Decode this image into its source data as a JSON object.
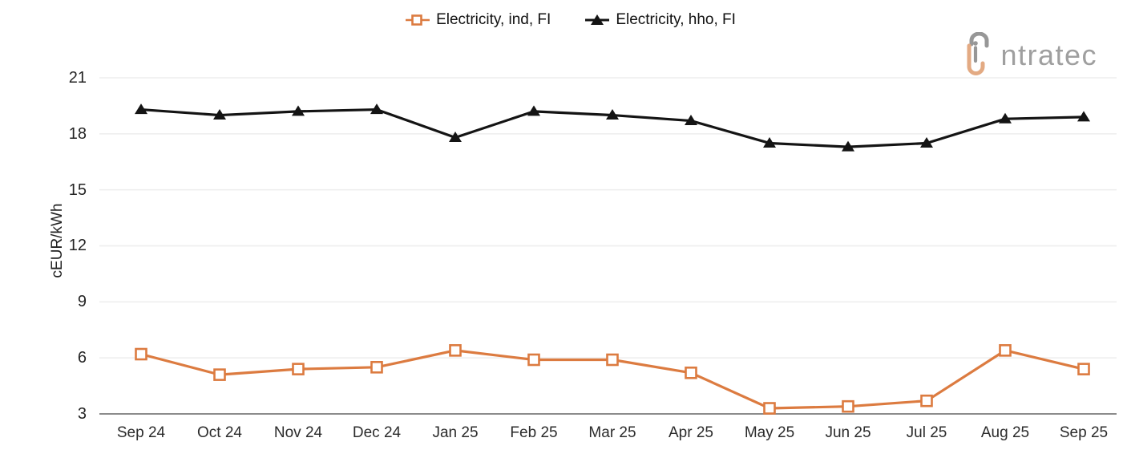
{
  "logo": {
    "brand": "intratec",
    "visible_text": "ntratec"
  },
  "colors": {
    "ind_orange": "#DC7B40",
    "hho_black": "#141414",
    "grid": "#ededed",
    "axis_line": "#8c8c8c",
    "logo_gray": "#979797",
    "logo_orange": "#E3AA83"
  },
  "chart_data": {
    "type": "line",
    "ylabel": "cEUR/kWh",
    "xlabel": "",
    "categories": [
      "Sep 24",
      "Oct 24",
      "Nov 24",
      "Dec 24",
      "Jan 25",
      "Feb 25",
      "Mar 25",
      "Apr 25",
      "May 25",
      "Jun 25",
      "Jul 25",
      "Aug 25",
      "Sep 25"
    ],
    "series": [
      {
        "name": "Electricity, ind, FI",
        "color": "#DC7B40",
        "marker": "square-hollow",
        "values": [
          6.2,
          5.1,
          5.4,
          5.5,
          6.4,
          5.9,
          5.9,
          5.2,
          3.3,
          3.4,
          3.7,
          6.4,
          5.4
        ]
      },
      {
        "name": "Electricity, hho, FI",
        "color": "#141414",
        "marker": "triangle-filled",
        "values": [
          19.3,
          19.0,
          19.2,
          19.3,
          17.8,
          19.2,
          19.0,
          18.7,
          17.5,
          17.3,
          17.5,
          18.8,
          18.9
        ]
      }
    ],
    "yticks": [
      3,
      6,
      9,
      12,
      15,
      18,
      21
    ],
    "ylim": [
      3,
      21
    ],
    "grid": true,
    "legend_position": "top-center"
  }
}
